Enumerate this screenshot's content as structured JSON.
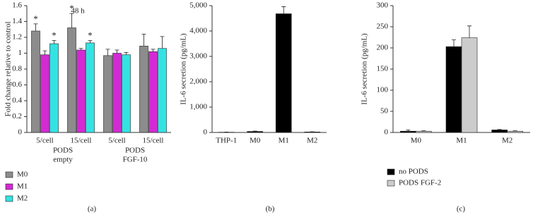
{
  "chart_data": [
    {
      "type": "bar",
      "title": "48 h",
      "panel_label": "(a)",
      "ylabel": "Fold change relative to control",
      "categories": [
        "5/cell",
        "15/cell",
        "5/cell",
        "15/cell"
      ],
      "group_labels": [
        [
          "PODS",
          "empty"
        ],
        [
          "PODS",
          "FGF-10"
        ]
      ],
      "ylim": [
        0,
        1.6
      ],
      "yticks": [
        0,
        0.2,
        0.4,
        0.6,
        0.8,
        1,
        1.2,
        1.4,
        1.6
      ],
      "series": [
        {
          "name": "M0",
          "color": "#8c8c8c",
          "values": [
            1.28,
            1.32,
            0.97,
            1.09
          ],
          "errors": [
            0.09,
            0.18,
            0.08,
            0.15
          ],
          "markers": [
            "*",
            "*",
            null,
            null
          ]
        },
        {
          "name": "M1",
          "color": "#d42ad4",
          "values": [
            0.98,
            1.04,
            1.0,
            1.02
          ],
          "errors": [
            0.05,
            0.02,
            0.04,
            0.03
          ],
          "markers": [
            null,
            null,
            null,
            null
          ]
        },
        {
          "name": "M2",
          "color": "#33e3e3",
          "values": [
            1.12,
            1.13,
            0.98,
            1.06
          ],
          "errors": [
            0.04,
            0.03,
            0.03,
            0.15
          ],
          "markers": [
            "*",
            "*",
            null,
            null
          ]
        }
      ]
    },
    {
      "type": "bar",
      "panel_label": "(b)",
      "ylabel": "IL-6 secretion (pg/mL)",
      "categories": [
        "THP-1",
        "M0",
        "M1",
        "M2"
      ],
      "ylim": [
        0,
        5000
      ],
      "yticks": [
        0,
        {
          "value": 1000,
          "label": "1,000"
        },
        {
          "value": 2000,
          "label": "2,000"
        },
        {
          "value": 3000,
          "label": "3,000"
        },
        {
          "value": 4000,
          "label": "4,000"
        },
        {
          "value": 5000,
          "label": "5,000"
        }
      ],
      "series": [
        {
          "color": "#000000",
          "values": [
            10,
            40,
            4680,
            20
          ],
          "errors": [
            5,
            15,
            280,
            8
          ]
        }
      ]
    },
    {
      "type": "bar",
      "panel_label": "(c)",
      "ylabel": "IL-6 secretion (pg/mL)",
      "categories": [
        "M0",
        "M1",
        "M2"
      ],
      "ylim": [
        0,
        300
      ],
      "yticks": [
        0,
        50,
        100,
        150,
        200,
        250,
        300
      ],
      "series": [
        {
          "name": "no PODS",
          "color": "#000000",
          "values": [
            3,
            203,
            6
          ],
          "errors": [
            3,
            16,
            1
          ]
        },
        {
          "name": "PODS FGF-2",
          "color": "#cccccc",
          "values": [
            3,
            224,
            3
          ],
          "errors": [
            1,
            28,
            1
          ]
        }
      ]
    }
  ]
}
